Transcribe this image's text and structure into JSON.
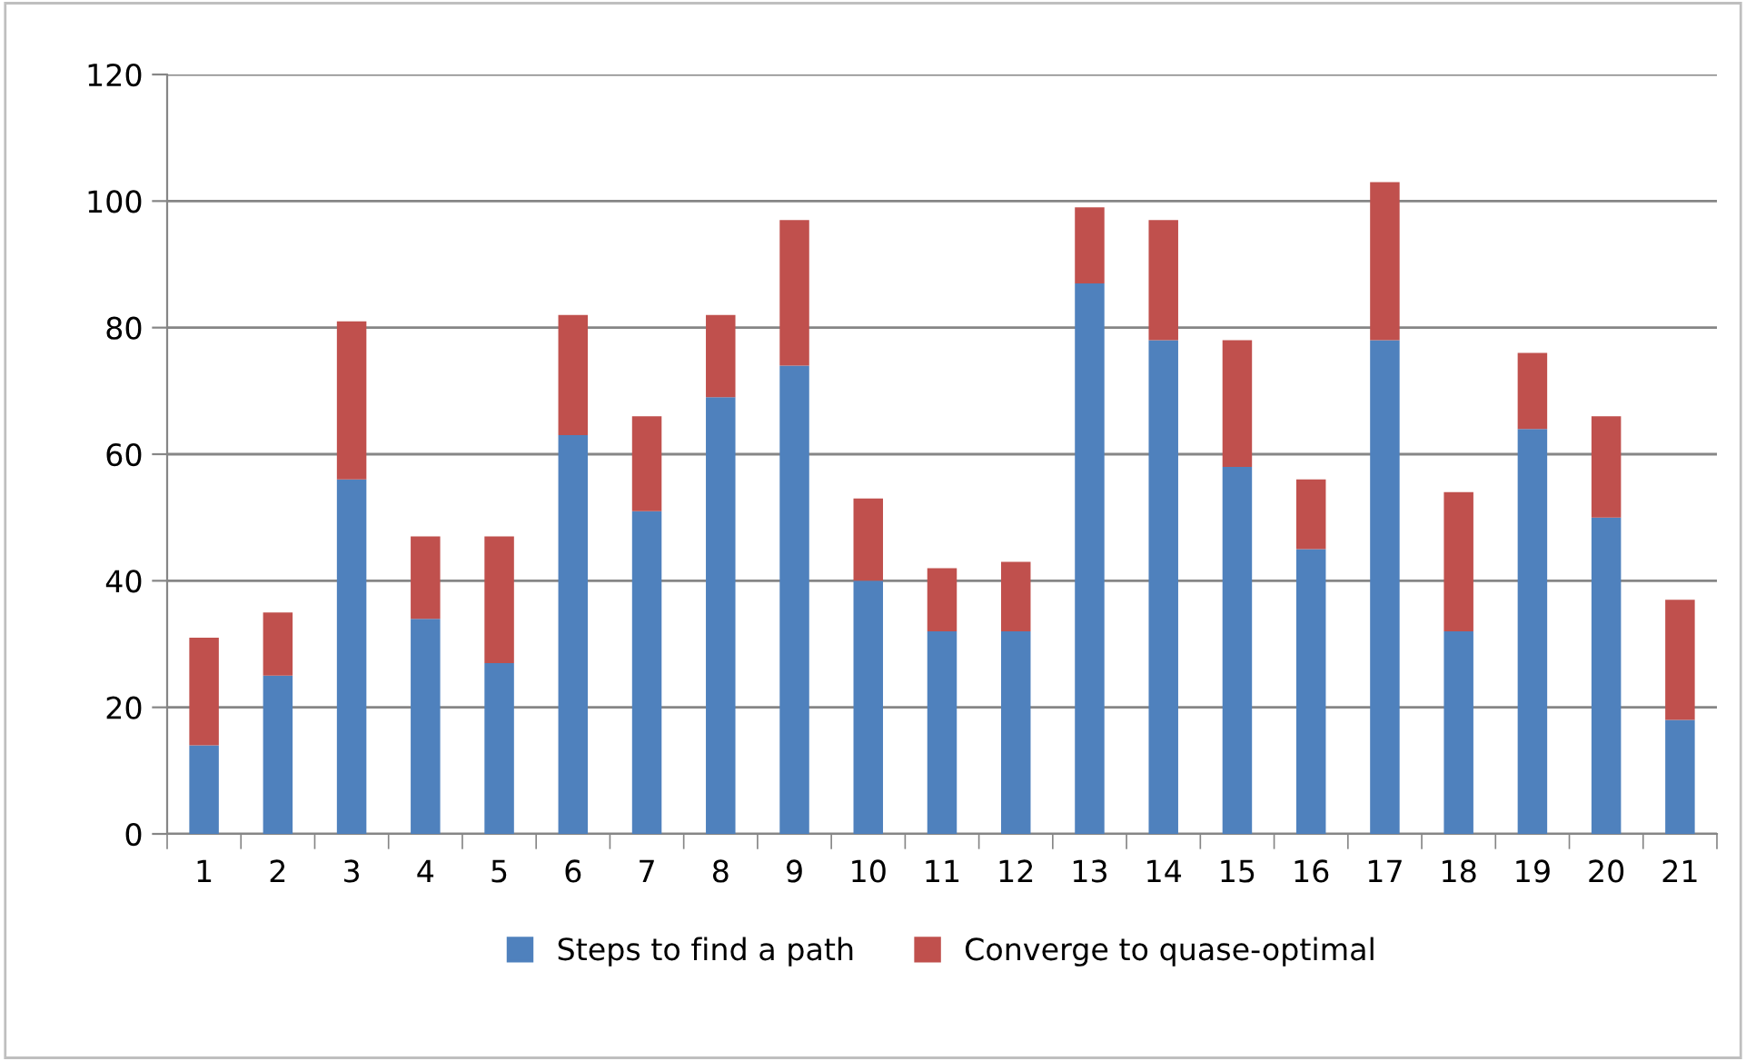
{
  "chart_data": {
    "type": "bar",
    "stacked": true,
    "categories": [
      "1",
      "2",
      "3",
      "4",
      "5",
      "6",
      "7",
      "8",
      "9",
      "10",
      "11",
      "12",
      "13",
      "14",
      "15",
      "16",
      "17",
      "18",
      "19",
      "20",
      "21"
    ],
    "series": [
      {
        "name": "Steps to find a path",
        "color": "#4f81bd",
        "values": [
          14,
          25,
          56,
          34,
          27,
          63,
          51,
          69,
          74,
          40,
          32,
          32,
          87,
          78,
          58,
          45,
          78,
          32,
          64,
          50,
          18
        ]
      },
      {
        "name": "Converge to quase-optimal",
        "color": "#c0504d",
        "values": [
          17,
          10,
          25,
          13,
          20,
          19,
          15,
          13,
          23,
          13,
          10,
          11,
          12,
          19,
          20,
          11,
          25,
          22,
          12,
          16,
          19
        ]
      }
    ],
    "ylim": [
      0,
      120
    ],
    "yticks": [
      0,
      20,
      40,
      60,
      80,
      100,
      120
    ],
    "grid": "y",
    "legend": "bottom"
  }
}
